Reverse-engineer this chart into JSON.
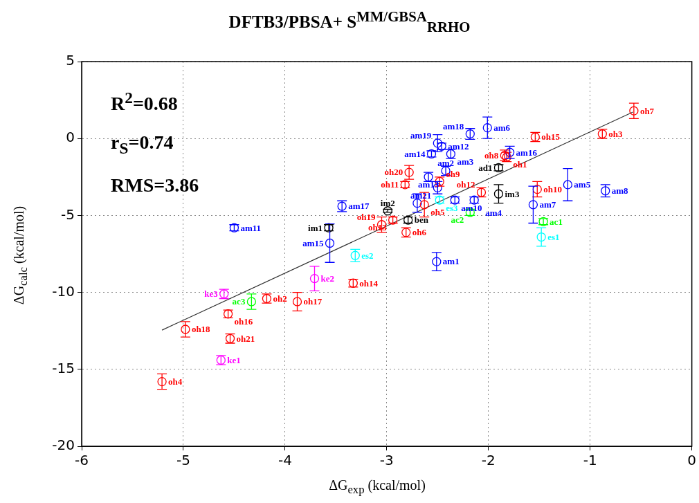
{
  "chart_data": {
    "type": "scatter",
    "title": "DFTB3/PBSA+ S$^{MM/GBSA}$$_{RRHO}$",
    "xlabel": "ΔG$_{exp}$ (kcal/mol)",
    "ylabel": "ΔG$_{calc}$ (kcal/mol)",
    "xlim": [
      -6,
      0
    ],
    "xticks": [
      -6,
      -5,
      -4,
      -3,
      -2,
      -1,
      0
    ],
    "ylim": [
      -20,
      5
    ],
    "yticks": [
      -20,
      -15,
      -10,
      -5,
      0,
      5
    ],
    "grid": true,
    "legend": false,
    "marker": "circle",
    "annotations": [
      "R$^{2}$=0.68",
      "r$_{S}$=0.74",
      "RMS=3.86"
    ],
    "series": [
      {
        "color": "#ff0000",
        "x": [
          -0.57,
          -0.88,
          -1.54,
          -1.84,
          -1.82,
          -1.52,
          -2.07,
          -2.78,
          -2.82,
          -2.48,
          -2.63,
          -2.94,
          -3.05,
          -2.81,
          -3.33,
          -3.88,
          -4.18,
          -4.56,
          -4.98,
          -4.54,
          -5.21
        ],
        "values": [
          1.8,
          0.3,
          0.1,
          -1.1,
          -1.2,
          -3.3,
          -3.5,
          -2.2,
          -3.0,
          -2.8,
          -4.3,
          -5.3,
          -5.6,
          -6.1,
          -9.4,
          -10.6,
          -10.4,
          -11.4,
          -12.4,
          -13.0,
          -15.8
        ],
        "errors": [
          0.5,
          0.3,
          0.3,
          0.35,
          0.3,
          0.5,
          0.3,
          0.45,
          0.2,
          0.3,
          0.8,
          0.2,
          0.5,
          0.3,
          0.25,
          0.6,
          0.3,
          0.25,
          0.5,
          0.3,
          0.5
        ],
        "value_labels": [
          "oh7",
          "oh3",
          "oh15",
          "oh8",
          "oh1",
          "oh10",
          "oh12",
          "oh20",
          "oh11",
          "oh9",
          "oh5",
          "oh13",
          "oh19",
          "oh6",
          "oh14",
          "oh17",
          "oh2",
          "oh16",
          "oh18",
          "oh21",
          "oh4"
        ]
      },
      {
        "color": "#0000ff",
        "x": [
          -2.01,
          -2.18,
          -2.5,
          -2.46,
          -2.56,
          -2.37,
          -1.79,
          -2.42,
          -2.59,
          -2.5,
          -2.33,
          -2.14,
          -2.7,
          -1.56,
          -1.22,
          -0.85,
          -3.44,
          -4.5,
          -3.56,
          -2.51
        ],
        "values": [
          0.7,
          0.3,
          -0.3,
          -0.5,
          -1.0,
          -1.0,
          -0.9,
          -2.1,
          -2.5,
          -3.2,
          -4.0,
          -4.0,
          -4.2,
          -4.3,
          -3.0,
          -3.4,
          -4.4,
          -5.8,
          -6.8,
          -8.0
        ],
        "errors": [
          0.7,
          0.35,
          0.55,
          0.2,
          0.2,
          0.3,
          0.4,
          0.3,
          0.3,
          0.4,
          0.2,
          0.2,
          0.6,
          1.2,
          1.05,
          0.4,
          0.35,
          0.2,
          1.25,
          0.6
        ],
        "value_labels": [
          "am6",
          "am18",
          "am19",
          "am12",
          "am14",
          "am3",
          "am16",
          "am2",
          "am13",
          "am21",
          "am10",
          "am4",
          null,
          "am7",
          "am5",
          "am8",
          "am17",
          "am11",
          "am15",
          "am1"
        ]
      },
      {
        "color": "#000000",
        "x": [
          -1.9,
          -1.9,
          -2.99,
          -2.79,
          -3.57
        ],
        "values": [
          -1.9,
          -3.6,
          -4.7,
          -5.3,
          -5.8
        ],
        "errors": [
          0.2,
          0.6,
          0.1,
          0.2,
          0.2
        ],
        "value_labels": [
          "ad1",
          "im3",
          "im2",
          "ben",
          "im1"
        ]
      },
      {
        "color": "#00ff00",
        "x": [
          -2.18,
          -1.46,
          -4.33
        ],
        "values": [
          -4.8,
          -5.4,
          -10.6
        ],
        "errors": [
          0.2,
          0.2,
          0.5
        ],
        "value_labels": [
          "ac2",
          "ac1",
          "ac3"
        ]
      },
      {
        "color": "#00ffff",
        "x": [
          -2.48,
          -1.48,
          -3.31
        ],
        "values": [
          -4.0,
          -6.4,
          -7.6
        ],
        "errors": [
          0.2,
          0.6,
          0.4
        ],
        "value_labels": [
          "es3",
          "es1",
          "es2"
        ]
      },
      {
        "color": "#ff00ff",
        "x": [
          -3.71,
          -4.6,
          -4.63
        ],
        "values": [
          -9.1,
          -10.1,
          -14.4
        ],
        "errors": [
          0.8,
          0.3,
          0.3
        ],
        "value_labels": [
          "ke2",
          "ke3",
          "ke1"
        ]
      },
      {
        "type": "line",
        "color": "#333333",
        "marker": "none",
        "x": [
          -5.21,
          -0.58
        ],
        "values": [
          -12.45,
          1.72
        ]
      }
    ]
  }
}
